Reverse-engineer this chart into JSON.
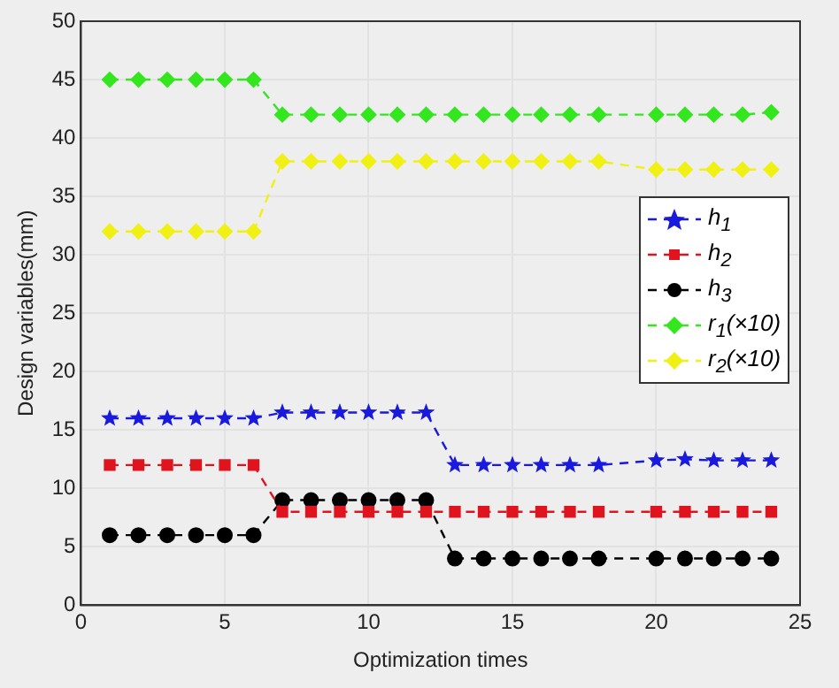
{
  "chart_data": {
    "type": "line",
    "xlabel": "Optimization times",
    "ylabel": "Design variables(mm)",
    "x": [
      1,
      2,
      3,
      4,
      5,
      6,
      7,
      8,
      9,
      10,
      11,
      12,
      13,
      14,
      15,
      16,
      17,
      18,
      20,
      21,
      22,
      23,
      24
    ],
    "xlim": [
      0,
      25
    ],
    "xticks": [
      0,
      5,
      10,
      15,
      20,
      25
    ],
    "ylim": [
      0,
      50
    ],
    "yticks": [
      0,
      5,
      10,
      15,
      20,
      25,
      30,
      35,
      40,
      45,
      50
    ],
    "grid": true,
    "legend": "right",
    "line_style": "dashed",
    "series": [
      {
        "name": "h$_{1}$",
        "color": "#1a1adf",
        "marker": "star",
        "values": [
          16,
          16,
          16,
          16,
          16,
          16,
          16.5,
          16.5,
          16.5,
          16.5,
          16.5,
          16.5,
          12,
          12,
          12,
          12,
          12,
          12,
          12.4,
          12.5,
          12.4,
          12.4,
          12.4
        ]
      },
      {
        "name": "h$_{2}$",
        "color": "#e0141e",
        "marker": "square",
        "values": [
          12,
          12,
          12,
          12,
          12,
          12,
          8,
          8,
          8,
          8,
          8,
          8,
          8,
          8,
          8,
          8,
          8,
          8,
          8,
          8,
          8,
          8,
          8
        ]
      },
      {
        "name": "h$_{3}$",
        "color": "#000000",
        "marker": "circle",
        "values": [
          6,
          6,
          6,
          6,
          6,
          6,
          9,
          9,
          9,
          9,
          9,
          9,
          4,
          4,
          4,
          4,
          4,
          4,
          4,
          4,
          4,
          4,
          4
        ]
      },
      {
        "name": "r$_{1}$(×10)",
        "color": "#33e61e",
        "marker": "diamond",
        "values": [
          45,
          45,
          45,
          45,
          45,
          45,
          42,
          42,
          42,
          42,
          42,
          42,
          42,
          42,
          42,
          42,
          42,
          42,
          42,
          42,
          42,
          42,
          42.2
        ]
      },
      {
        "name": "r$_{2}$(×10)",
        "color": "#f0f014",
        "marker": "diamond",
        "values": [
          32,
          32,
          32,
          32,
          32,
          32,
          38,
          38,
          38,
          38,
          38,
          38,
          38,
          38,
          38,
          38,
          38,
          38,
          37.3,
          37.3,
          37.3,
          37.3,
          37.3
        ]
      }
    ]
  }
}
